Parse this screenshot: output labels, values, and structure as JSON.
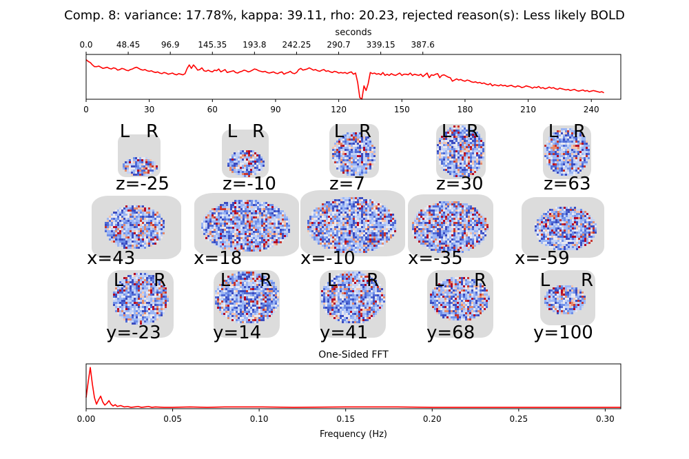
{
  "title": "Comp. 8: variance: 17.78%, kappa: 39.11, rho: 20.23, rejected reason(s): Less likely BOLD",
  "colors": {
    "line": "#ff0000",
    "mask": "#dcdcdc",
    "neg_strong": "#3b4cc0",
    "pos_strong": "#b40426"
  },
  "chart_data": [
    {
      "type": "line",
      "name": "timeseries",
      "title": "",
      "xlabel": "",
      "xlabel_top": "seconds",
      "ylabel": "",
      "x_ticks": [
        "0",
        "30",
        "60",
        "90",
        "120",
        "150",
        "180",
        "210",
        "240"
      ],
      "x_ticks_top": [
        "0.0",
        "48.45",
        "96.9",
        "145.35",
        "193.8",
        "242.25",
        "290.7",
        "339.15",
        "387.6"
      ],
      "xlim": [
        0,
        254
      ],
      "ylim": [
        -1.95,
        1.9
      ],
      "y_ticks_shown": false,
      "series": [
        {
          "values": [
            1.45,
            1.3,
            1.2,
            1.0,
            0.85,
            0.85,
            0.9,
            0.8,
            0.7,
            0.75,
            0.8,
            0.7,
            0.65,
            0.75,
            0.7,
            0.55,
            0.6,
            0.7,
            0.65,
            0.55,
            0.5,
            0.6,
            0.65,
            0.75,
            0.8,
            0.7,
            0.6,
            0.55,
            0.6,
            0.5,
            0.45,
            0.5,
            0.4,
            0.35,
            0.4,
            0.3,
            0.25,
            0.35,
            0.3,
            0.2,
            0.25,
            0.3,
            0.2,
            0.15,
            0.25,
            0.2,
            0.15,
            0.25,
            0.7,
            1.0,
            0.7,
            1.0,
            0.8,
            0.55,
            0.6,
            0.75,
            0.5,
            0.45,
            0.55,
            0.45,
            0.4,
            0.55,
            0.5,
            0.65,
            0.4,
            0.5,
            0.6,
            0.35,
            0.4,
            0.45,
            0.5,
            0.35,
            0.3,
            0.4,
            0.45,
            0.55,
            0.5,
            0.4,
            0.45,
            0.55,
            0.65,
            0.6,
            0.5,
            0.45,
            0.4,
            0.45,
            0.35,
            0.3,
            0.35,
            0.4,
            0.3,
            0.25,
            0.35,
            0.4,
            0.2,
            0.3,
            0.35,
            0.45,
            0.3,
            0.25,
            0.35,
            0.6,
            0.7,
            0.55,
            0.6,
            0.65,
            0.75,
            0.65,
            0.55,
            0.6,
            0.5,
            0.45,
            0.55,
            0.6,
            0.45,
            0.5,
            0.4,
            0.35,
            0.45,
            0.4,
            0.3,
            0.35,
            0.3,
            0.35,
            0.25,
            0.35,
            0.4,
            0.2,
            0.3,
            0.35,
            0.2,
            0.3,
            0.25,
            0.3,
            0.3,
            0.35,
            0.25,
            0.3,
            0.2,
            0.25,
            0.15,
            0.35,
            0.1,
            0.2,
            0.1,
            0.25,
            0.15,
            0.1,
            0.2,
            0.3,
            0.1,
            0.2,
            0.2,
            0.15,
            0.3,
            0.1,
            0.2,
            0.15,
            0.1,
            0.2,
            0.0,
            0.15,
            0.3,
            -0.1,
            0.15,
            0.1,
            0.2,
            0.25,
            -0.1,
            0.1,
            0.15,
            0.05,
            -0.05,
            -0.1,
            -0.4,
            -0.3,
            -0.2,
            -0.3,
            -0.25,
            -0.35,
            -0.4,
            -0.3,
            -0.35,
            -0.45,
            -0.5,
            -0.45,
            -0.55,
            -0.5,
            -0.6,
            -0.55,
            -0.65,
            -0.7,
            -0.6,
            -0.8,
            -0.7,
            -0.75,
            -0.8,
            -0.7,
            -0.8,
            -0.75,
            -0.85,
            -0.8,
            -0.75,
            -0.85,
            -0.9,
            -0.8,
            -0.85,
            -0.95,
            -0.9,
            -0.8,
            -0.85,
            -0.9,
            -1.0,
            -0.9,
            -0.95,
            -0.85,
            -1.0,
            -0.95,
            -1.05,
            -1.0,
            -0.9,
            -1.0,
            -0.95,
            -1.05,
            -1.1,
            -1.0,
            -1.05,
            -1.1,
            -1.15,
            -1.1,
            -1.2,
            -1.15,
            -1.1,
            -1.2,
            -1.25,
            -1.2,
            -1.15,
            -1.25,
            -1.2,
            -1.3,
            -1.25,
            -1.2,
            -1.25,
            -1.3,
            -1.35,
            -1.3,
            -1.4
          ],
          "events": [
            {
              "x": 129,
              "y": -0.5
            },
            {
              "x": 130,
              "y": -1.8
            },
            {
              "x": 131,
              "y": -1.95
            },
            {
              "x": 132,
              "y": -0.8
            },
            {
              "x": 133,
              "y": -1.2
            },
            {
              "x": 134,
              "y": -0.6
            }
          ]
        }
      ]
    },
    {
      "type": "line",
      "name": "fft",
      "title": "One-Sided FFT",
      "xlabel": "Frequency (Hz)",
      "ylabel": "",
      "x_ticks": [
        "0.00",
        "0.05",
        "0.10",
        "0.15",
        "0.20",
        "0.25",
        "0.30"
      ],
      "xlim": [
        0,
        0.309
      ],
      "ylim": [
        0,
        1.0
      ],
      "y_ticks_shown": false,
      "series": [
        {
          "x": [
            0.0,
            0.0012,
            0.0024,
            0.0036,
            0.0048,
            0.006,
            0.0072,
            0.0084,
            0.0096,
            0.0108,
            0.012,
            0.0132,
            0.0144,
            0.0156,
            0.0168,
            0.018,
            0.02,
            0.022,
            0.024,
            0.026,
            0.028,
            0.03,
            0.032,
            0.034,
            0.036,
            0.038,
            0.04,
            0.045,
            0.05,
            0.06,
            0.07,
            0.08,
            0.1,
            0.12,
            0.15,
            0.18,
            0.2,
            0.25,
            0.3,
            0.309
          ],
          "values": [
            0.25,
            0.6,
            0.92,
            0.55,
            0.25,
            0.1,
            0.2,
            0.28,
            0.15,
            0.08,
            0.12,
            0.18,
            0.1,
            0.06,
            0.09,
            0.05,
            0.07,
            0.04,
            0.05,
            0.03,
            0.04,
            0.05,
            0.03,
            0.04,
            0.05,
            0.03,
            0.04,
            0.03,
            0.03,
            0.04,
            0.03,
            0.04,
            0.04,
            0.03,
            0.04,
            0.04,
            0.03,
            0.03,
            0.03,
            0.03
          ]
        }
      ]
    }
  ],
  "brain": {
    "rows": [
      {
        "name": "axial",
        "show_lr": true,
        "lr_left": "L",
        "lr_right": "R",
        "labels": [
          "z=-25",
          "z=-10",
          "z=7",
          "z=30",
          "z=63"
        ]
      },
      {
        "name": "sagittal",
        "show_lr": false,
        "labels": [
          "x=43",
          "x=18",
          "x=-10",
          "x=-35",
          "x=-59"
        ]
      },
      {
        "name": "coronal",
        "show_lr": true,
        "lr_left": "L",
        "lr_right": "R",
        "labels": [
          "y=-23",
          "y=14",
          "y=41",
          "y=68",
          "y=100"
        ]
      }
    ]
  }
}
